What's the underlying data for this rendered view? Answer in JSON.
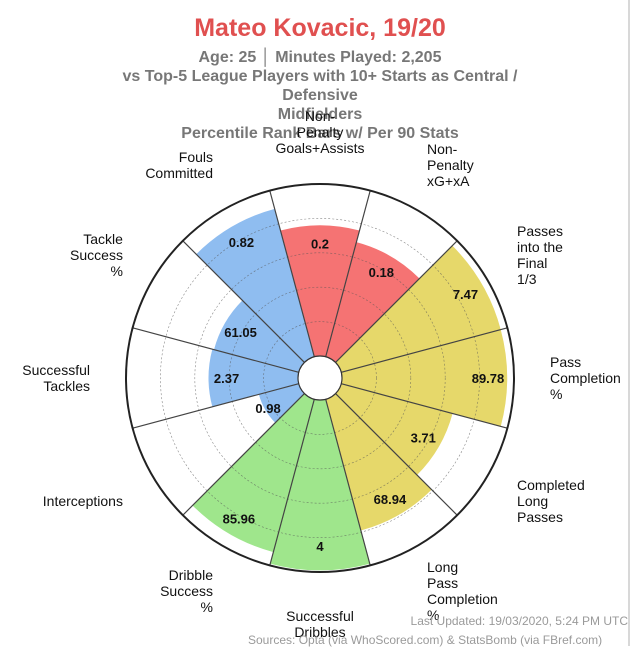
{
  "chart_data": {
    "type": "polar-bar",
    "title": "Mateo Kovacic, 19/20",
    "subtitle_lines": [
      "Age: 25  │  Minutes Played: 2,205",
      "vs Top-5 League Players with 10+ Starts as Central / Defensive",
      "Midfielders",
      "Percentile Rank Bars w/ Per 90 Stats"
    ],
    "percentile_range": [
      0,
      100
    ],
    "grid": true,
    "categories": [
      {
        "label": [
          "Non-",
          "Penalty",
          "Goals+Assists"
        ],
        "value_label": "0.2",
        "percentile": 76,
        "group": "attacking"
      },
      {
        "label": [
          "Non-",
          "Penalty",
          "xG+xA"
        ],
        "value_label": "0.18",
        "percentile": 69,
        "group": "attacking"
      },
      {
        "label": [
          "Passes",
          "into the",
          "Final",
          "1/3"
        ],
        "value_label": "7.47",
        "percentile": 96,
        "group": "passing"
      },
      {
        "label": [
          "Pass",
          "Completion",
          "%"
        ],
        "value_label": "89.78",
        "percentile": 96,
        "group": "passing"
      },
      {
        "label": [
          "Completed",
          "Long",
          "Passes"
        ],
        "value_label": "3.71",
        "percentile": 67,
        "group": "passing"
      },
      {
        "label": [
          "Long",
          "Pass",
          "Completion",
          "%"
        ],
        "value_label": "68.94",
        "percentile": 79,
        "group": "passing"
      },
      {
        "label": [
          "Successful",
          "Dribbles"
        ],
        "value_label": "4",
        "percentile": 99,
        "group": "dribbling"
      },
      {
        "label": [
          "Dribble",
          "Success",
          "%"
        ],
        "value_label": "85.96",
        "percentile": 92,
        "group": "dribbling"
      },
      {
        "label": [
          "Interceptions"
        ],
        "value_label": "0.98",
        "percentile": 24,
        "group": "defending"
      },
      {
        "label": [
          "Successful",
          "Tackles"
        ],
        "value_label": "2.37",
        "percentile": 52,
        "group": "defending"
      },
      {
        "label": [
          "Tackle",
          "Success",
          "%"
        ],
        "value_label": "61.05",
        "percentile": 51,
        "group": "defending"
      },
      {
        "label": [
          "Fouls",
          "Committed"
        ],
        "value_label": "0.82",
        "percentile": 89,
        "group": "defending"
      }
    ],
    "group_colors": {
      "attacking": "#f57373",
      "passing": "#e6d86a",
      "dribbling": "#9fe68c",
      "defending": "#8fbdf0"
    }
  },
  "footer": {
    "updated": "Last Updated: 19/03/2020, 5:24 PM UTC",
    "sources": "Sources: Opta (via WhoScored.com) & StatsBomb (via FBref.com)"
  }
}
